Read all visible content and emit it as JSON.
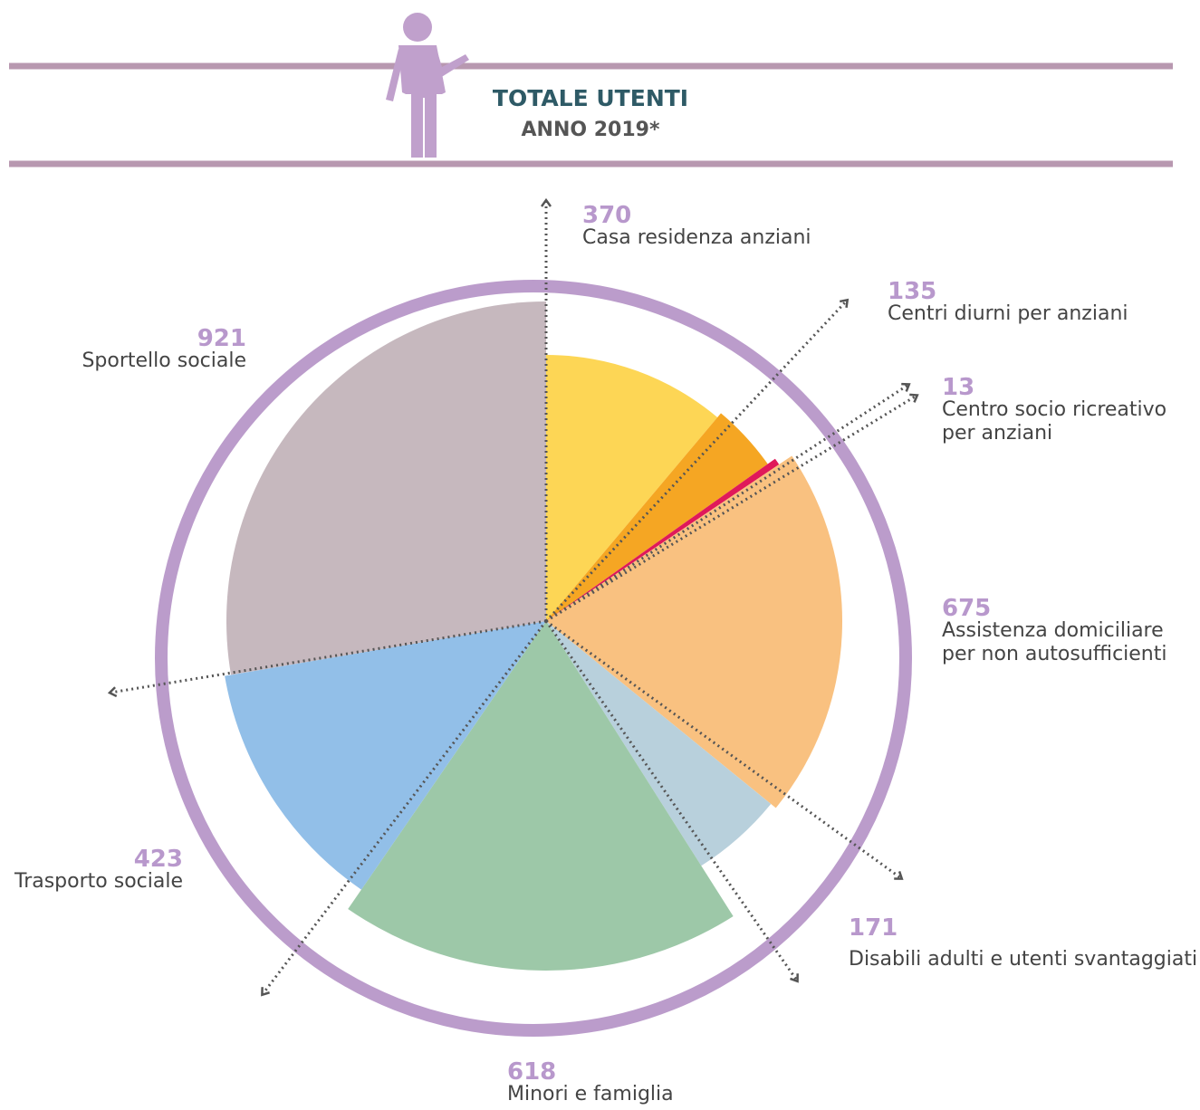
{
  "chart_data": {
    "type": "pie",
    "title": "TOTALE UTENTI",
    "subtitle": "ANNO 2019*",
    "categories": [
      "Casa residenza anziani",
      "Centri diurni per anziani",
      "Centro socio ricreativo per anziani",
      "Assistenza domiciliare per non autosufficienti",
      "Disabili adulti e utenti svantaggiati",
      "Minori e famiglia",
      "Trasporto sociale",
      "Sportello sociale"
    ],
    "values": [
      370,
      135,
      13,
      675,
      171,
      618,
      423,
      921
    ],
    "colors": [
      "#fdd655",
      "#f5a623",
      "#e0195a",
      "#f9c180",
      "#b8d0dc",
      "#9dc8a8",
      "#92bfe8",
      "#c6b8be"
    ]
  }
}
